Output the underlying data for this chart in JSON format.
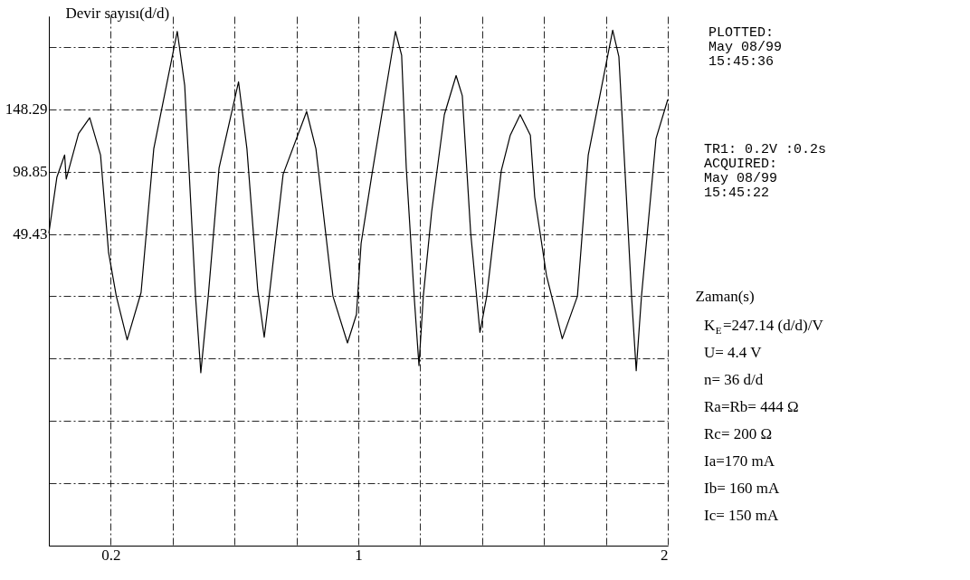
{
  "chart_data": {
    "type": "line",
    "xlabel": "Zaman(s)",
    "ylabel": "Devir sayısı(d/d)",
    "xlim": [
      0,
      2
    ],
    "ylim": [
      -197.72,
      222
    ],
    "xticks": [
      {
        "value": 0,
        "label": null
      },
      0.2,
      {
        "value": 0.4,
        "label": null
      },
      {
        "value": 0.6,
        "label": null
      },
      {
        "value": 0.8,
        "label": null
      },
      1,
      {
        "value": 1.2,
        "label": null
      },
      {
        "value": 1.4,
        "label": null
      },
      {
        "value": 1.6,
        "label": null
      },
      {
        "value": 1.8,
        "label": null
      },
      2
    ],
    "yticks": [
      {
        "value": -197.72,
        "label": null
      },
      {
        "value": -148.29,
        "label": null
      },
      {
        "value": -98.85,
        "label": null
      },
      {
        "value": -49.43,
        "label": null
      },
      {
        "value": 0,
        "label": null
      },
      49.43,
      98.85,
      148.29,
      {
        "value": 197.72,
        "label": null
      }
    ],
    "grid": true,
    "marker": "none",
    "line_style": "solid",
    "series": [
      {
        "color": "#000000",
        "x": [
          0,
          0.026,
          0.051,
          0.056,
          0.096,
          0.132,
          0.167,
          0.193,
          0.218,
          0.253,
          0.298,
          0.339,
          0.415,
          0.439,
          0.474,
          0.491,
          0.515,
          0.55,
          0.613,
          0.64,
          0.675,
          0.696,
          0.712,
          0.757,
          0.833,
          0.863,
          0.918,
          0.965,
          0.994,
          1.009,
          1.044,
          1.12,
          1.14,
          1.155,
          1.181,
          1.196,
          1.21,
          1.237,
          1.278,
          1.316,
          1.336,
          1.363,
          1.393,
          1.415,
          1.462,
          1.491,
          1.523,
          1.556,
          1.57,
          1.608,
          1.659,
          1.708,
          1.743,
          1.822,
          1.842,
          1.868,
          1.883,
          1.898,
          1.915,
          1.962,
          2.0
        ],
        "values": [
          50,
          94.5,
          112,
          93,
          129,
          141.5,
          112,
          34.6,
          0,
          -34.6,
          3,
          117,
          210,
          167,
          0,
          -60.6,
          0,
          101.7,
          170,
          117,
          5,
          -32.5,
          0,
          96.7,
          146.5,
          117,
          0,
          -37,
          -14.4,
          41.9,
          96.7,
          210,
          191,
          101.7,
          -2,
          -55,
          0,
          67,
          144,
          175,
          159,
          50.5,
          -28.6,
          0,
          99.6,
          127.7,
          144,
          127.7,
          78.7,
          16.6,
          -33.7,
          0,
          112,
          211,
          190,
          70.7,
          0,
          -59,
          0,
          125,
          156
        ]
      }
    ],
    "annotations": [
      "PLOTTED:\nMay 08/99\n15:45:36",
      "TR1:  0.2V :0.2s\nACQUIRED:\nMay 08/99\n15:45:22",
      "K$_{E}$=247.14 (d/d)/V\nU= 4.4 V\nn= 36 d/d\nRa=Rb= 444 Ω\nRc= 200 Ω\nIa=170 mA\nIb= 160 mA\nIc= 150 mA"
    ]
  }
}
